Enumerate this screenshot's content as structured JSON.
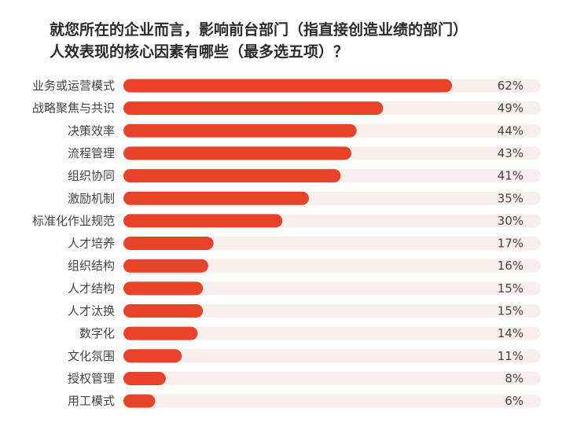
{
  "title": {
    "line1": "就您所在的企业而言，影响前台部门（指直接创造业绩的部门）",
    "line2": "人效表现的核心因素有哪些（最多选五项）？"
  },
  "colors": {
    "bar": "#e8432a",
    "track": "#f8eeec",
    "label": "#444444",
    "value": "#444444"
  },
  "chart_data": {
    "type": "bar",
    "orientation": "horizontal",
    "title": "就您所在的企业而言，影响前台部门（指直接创造业绩的部门）人效表现的核心因素有哪些（最多选五项）？",
    "categories": [
      "业务或运营模式",
      "战略聚焦与共识",
      "决策效率",
      "流程管理",
      "组织协同",
      "激励机制",
      "标准化作业规范",
      "人才培养",
      "组织结构",
      "人才结构",
      "人才汰换",
      "数字化",
      "文化氛围",
      "授权管理",
      "用工模式"
    ],
    "values": [
      62,
      49,
      44,
      43,
      41,
      35,
      30,
      17,
      16,
      15,
      15,
      14,
      11,
      8,
      6
    ],
    "value_labels": [
      "62%",
      "49%",
      "44%",
      "43%",
      "41%",
      "35%",
      "30%",
      "17%",
      "16%",
      "15%",
      "15%",
      "14%",
      "11%",
      "8%",
      "6%"
    ],
    "unit": "%",
    "xlim": [
      0,
      100
    ],
    "xlabel": "",
    "ylabel": "",
    "grid": false,
    "legend": "none"
  }
}
